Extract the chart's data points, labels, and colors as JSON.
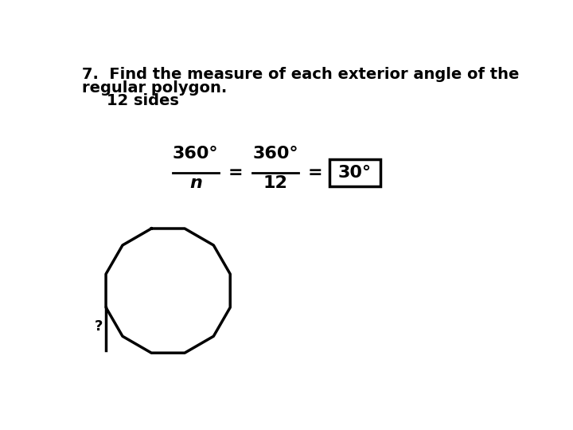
{
  "title_line1": "7.  Find the measure of each exterior angle of the",
  "title_line2": "regular polygon.",
  "title_line3": "12 sides",
  "formula_numerator1": "360°",
  "formula_denominator1": "n",
  "formula_numerator2": "360°",
  "formula_denominator2": "12",
  "answer": "30°",
  "n_sides": 12,
  "background_color": "#ffffff",
  "text_color": "#000000",
  "font_size_title": 14,
  "font_size_formula": 16,
  "font_size_answer": 16
}
